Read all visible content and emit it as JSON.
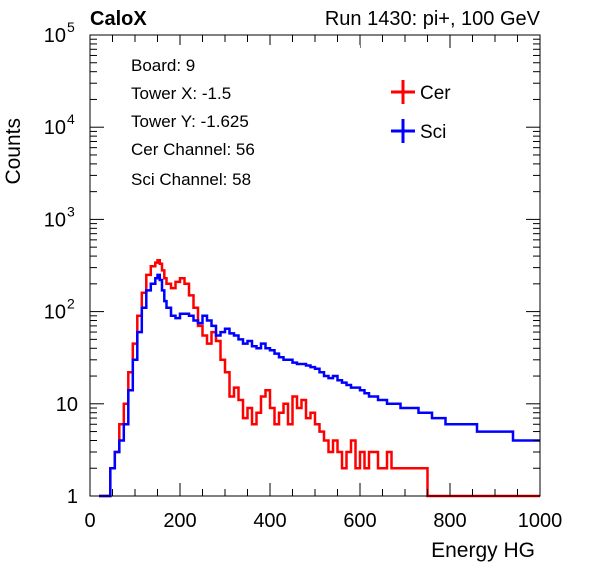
{
  "chart_data": {
    "type": "line",
    "title_left": "CaloX",
    "title_right": "Run 1430: pi+, 100 GeV",
    "xlabel": "Energy HG",
    "ylabel": "Counts",
    "xlim": [
      0,
      1000
    ],
    "ylim": [
      1,
      100000
    ],
    "yscale": "log",
    "grid": false,
    "x_ticks": [
      "0",
      "200",
      "400",
      "600",
      "800",
      "1000"
    ],
    "y_ticks": [
      {
        "value": 1,
        "base": "1",
        "exp": ""
      },
      {
        "value": 10,
        "base": "10",
        "exp": ""
      },
      {
        "value": 100,
        "base": "10",
        "exp": "2"
      },
      {
        "value": 1000,
        "base": "10",
        "exp": "3"
      },
      {
        "value": 10000,
        "base": "10",
        "exp": "4"
      },
      {
        "value": 100000,
        "base": "10",
        "exp": "5"
      }
    ],
    "info_box": [
      "Board: 9",
      "Tower X: -1.5",
      "Tower Y: -1.625",
      "Cer Channel: 56",
      "Sci Channel: 58"
    ],
    "legend_position": "top-right",
    "series": [
      {
        "name": "Cer",
        "color": "#ff0000",
        "x": [
          20,
          45,
          55,
          65,
          75,
          85,
          95,
          105,
          115,
          125,
          135,
          145,
          150,
          155,
          160,
          165,
          170,
          180,
          190,
          200,
          210,
          220,
          230,
          240,
          250,
          260,
          270,
          280,
          290,
          300,
          310,
          320,
          330,
          340,
          350,
          360,
          370,
          380,
          390,
          400,
          410,
          420,
          430,
          440,
          450,
          460,
          470,
          480,
          490,
          500,
          510,
          520,
          530,
          540,
          550,
          560,
          570,
          580,
          590,
          600,
          610,
          620,
          630,
          640,
          650,
          660,
          670,
          680,
          690,
          700,
          710,
          720,
          730,
          740,
          750,
          760,
          770,
          780,
          790,
          800,
          820,
          840,
          860,
          880,
          900,
          920,
          940,
          960,
          980,
          1000
        ],
        "y": [
          1,
          2,
          3,
          6,
          10,
          22,
          45,
          90,
          160,
          250,
          310,
          340,
          360,
          330,
          280,
          230,
          200,
          180,
          210,
          230,
          200,
          150,
          110,
          70,
          55,
          45,
          60,
          48,
          30,
          22,
          12,
          15,
          11,
          7,
          9,
          6,
          8,
          12,
          14,
          9,
          6,
          8,
          10,
          6,
          12,
          9,
          11,
          7,
          8,
          6,
          5,
          4,
          3,
          4,
          3,
          2,
          3,
          4,
          2,
          3,
          2,
          3,
          3,
          2,
          2,
          3,
          2,
          2,
          2,
          2,
          2,
          2,
          2,
          2,
          1,
          1,
          1,
          1,
          1,
          1,
          1,
          1,
          1,
          1,
          1,
          1,
          1,
          1,
          1,
          1
        ]
      },
      {
        "name": "Sci",
        "color": "#0000ff",
        "x": [
          20,
          45,
          55,
          65,
          75,
          85,
          95,
          105,
          115,
          125,
          135,
          145,
          150,
          155,
          160,
          165,
          170,
          180,
          190,
          200,
          210,
          220,
          230,
          240,
          250,
          260,
          270,
          280,
          290,
          300,
          310,
          320,
          330,
          340,
          350,
          360,
          370,
          380,
          390,
          400,
          410,
          420,
          430,
          440,
          450,
          460,
          470,
          480,
          490,
          500,
          510,
          520,
          530,
          540,
          550,
          560,
          570,
          580,
          590,
          600,
          610,
          620,
          630,
          640,
          650,
          660,
          670,
          680,
          690,
          700,
          710,
          720,
          730,
          740,
          750,
          760,
          770,
          780,
          790,
          800,
          820,
          840,
          860,
          880,
          900,
          920,
          940,
          960,
          980,
          1000
        ],
        "y": [
          1,
          2,
          3,
          4,
          6,
          14,
          30,
          60,
          110,
          170,
          200,
          230,
          250,
          220,
          170,
          130,
          110,
          90,
          85,
          95,
          95,
          90,
          80,
          75,
          90,
          80,
          70,
          55,
          60,
          65,
          58,
          55,
          50,
          45,
          48,
          42,
          40,
          45,
          40,
          38,
          35,
          32,
          30,
          30,
          28,
          27,
          27,
          26,
          25,
          24,
          22,
          20,
          19,
          20,
          18,
          17,
          16,
          15,
          15,
          14,
          13,
          12,
          12,
          11,
          11,
          10,
          10,
          10,
          9,
          9,
          9,
          9,
          8,
          8,
          8,
          7,
          7,
          7,
          6,
          6,
          6,
          6,
          5,
          5,
          5,
          5,
          4,
          4,
          4,
          4
        ]
      }
    ]
  }
}
